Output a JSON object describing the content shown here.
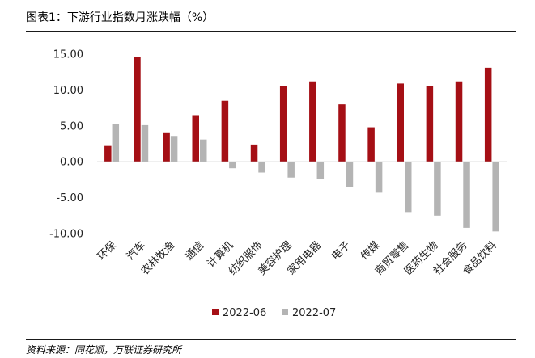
{
  "title": "图表1：下游行业指数月涨跌幅（%）",
  "source": "资料来源：同花顺，万联证券研究所",
  "colors": {
    "s2022_06": "#a50f15",
    "s2022_07": "#b4b4b4"
  },
  "chart_data": {
    "type": "bar",
    "title": "",
    "xlabel": "",
    "ylabel": "",
    "ylim": [
      -10,
      15
    ],
    "yticks": [
      "15.00",
      "10.00",
      "5.00",
      "0.00",
      "-5.00",
      "-10.00"
    ],
    "grid": false,
    "legend_position": "bottom",
    "categories": [
      "环保",
      "汽车",
      "农林牧渔",
      "通信",
      "计算机",
      "纺织服饰",
      "美容护理",
      "家用电器",
      "电子",
      "传媒",
      "商贸零售",
      "医药生物",
      "社会服务",
      "食品饮料"
    ],
    "series": [
      {
        "name": "2022-06",
        "values": [
          2.2,
          14.6,
          4.1,
          6.5,
          8.5,
          2.4,
          10.6,
          11.2,
          8.0,
          4.8,
          10.9,
          10.5,
          11.2,
          13.1
        ]
      },
      {
        "name": "2022-07",
        "values": [
          5.3,
          5.1,
          3.6,
          3.1,
          -0.9,
          -1.5,
          -2.2,
          -2.4,
          -3.5,
          -4.3,
          -7.0,
          -7.5,
          -9.2,
          -9.7
        ]
      }
    ]
  }
}
